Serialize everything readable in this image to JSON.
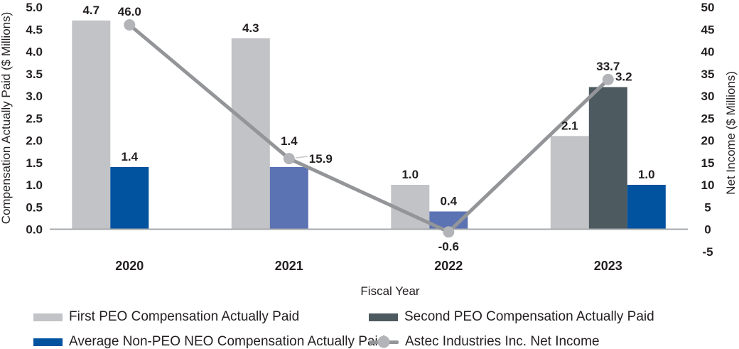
{
  "chart_data": {
    "type": "combo-bar-line",
    "categories": [
      "2020",
      "2021",
      "2022",
      "2023"
    ],
    "xlabel": "Fiscal Year",
    "axes": {
      "left": {
        "label": "Compensation Actually Paid ($ Millions)",
        "min": 0.0,
        "max": 5.0,
        "step": 0.5,
        "decimals": 1,
        "ticks": [
          5.0,
          4.5,
          4.0,
          3.5,
          3.0,
          2.5,
          2.0,
          1.5,
          1.0,
          0.5,
          0.0
        ]
      },
      "right": {
        "label": "Net Income ($ Millions)",
        "min": -5,
        "max": 50,
        "step": 5,
        "decimals": 0,
        "ticks": [
          50,
          45,
          40,
          35,
          30,
          25,
          20,
          15,
          10,
          5,
          0,
          -5
        ]
      }
    },
    "bar_series": [
      {
        "id": "first-peo",
        "name": "First PEO Compensation Actually Paid",
        "color": "#c2c3c6",
        "values": [
          4.7,
          4.3,
          1.0,
          2.1
        ]
      },
      {
        "id": "second-peo",
        "name": "Second PEO Compensation Actually Paid",
        "color": "#4d5a60",
        "values": [
          null,
          null,
          null,
          3.2
        ]
      },
      {
        "id": "avg-non-peo-neo",
        "name": "Average Non-PEO NEO Compensation Actually Paid",
        "color": "#01529f",
        "point_colors": [
          "#01529f",
          "#5b72b3",
          "#5b72b3",
          "#01529f"
        ],
        "values": [
          1.4,
          1.4,
          0.4,
          1.0
        ]
      }
    ],
    "line_series": {
      "id": "net-income",
      "name": "Astec Industries Inc. Net Income",
      "color": "#939598",
      "marker_color": "#b2b4b7",
      "values": [
        46.0,
        15.9,
        -0.6,
        33.7
      ],
      "label_positions": [
        "above",
        "right",
        "below",
        "above"
      ]
    },
    "colors": {
      "text": "#231f20",
      "axis_line": "#a7a9ac",
      "leader_line": "#c6c7c9"
    },
    "legend_position": "bottom"
  }
}
